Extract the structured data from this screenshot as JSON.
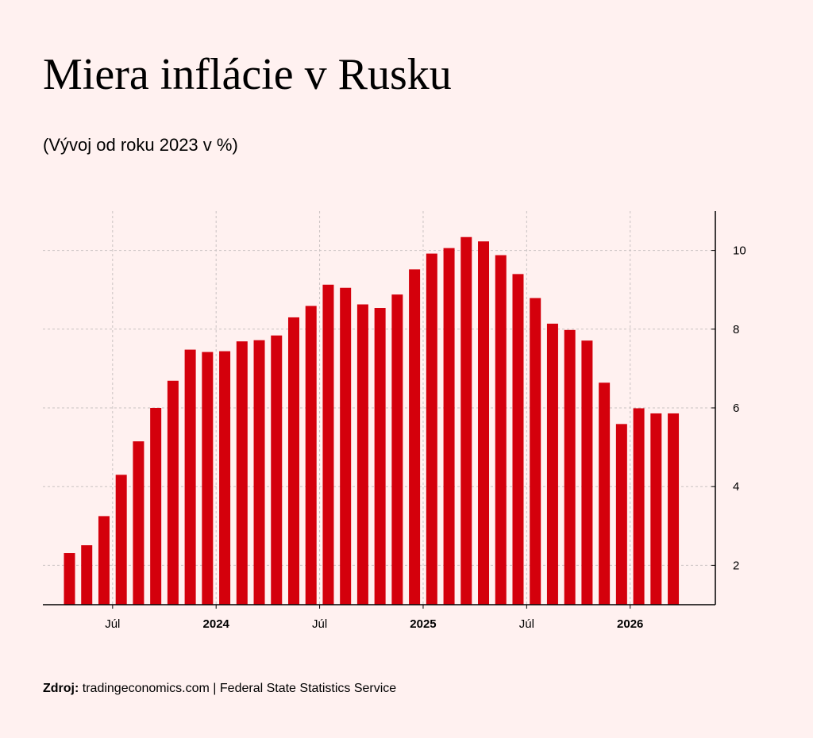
{
  "header": {
    "title": "Miera inflácie v Rusku",
    "subtitle": "(Vývoj od roku 2023 v %)"
  },
  "footer": {
    "source_label": "Zdroj:",
    "source_text": " tradingeconomics.com | Federal State Statistics Service"
  },
  "colors": {
    "bar": "#d4000c",
    "background": "#fff1f0",
    "grid": "#c9c2c2",
    "axis": "#000000"
  },
  "chart_data": {
    "type": "bar",
    "x": [
      "2023-04",
      "2023-05",
      "2023-06",
      "2023-07",
      "2023-08",
      "2023-09",
      "2023-10",
      "2023-11",
      "2023-12",
      "2024-01",
      "2024-02",
      "2024-03",
      "2024-04",
      "2024-05",
      "2024-06",
      "2024-07",
      "2024-08",
      "2024-09",
      "2024-10",
      "2024-11",
      "2024-12",
      "2025-01",
      "2025-02",
      "2025-03",
      "2025-04",
      "2025-05",
      "2025-06",
      "2025-07",
      "2025-08",
      "2025-09",
      "2025-10",
      "2025-11",
      "2025-12",
      "2026-01",
      "2026-02",
      "2026-03"
    ],
    "values": [
      2.31,
      2.51,
      3.25,
      4.3,
      5.15,
      6.0,
      6.69,
      7.48,
      7.42,
      7.44,
      7.69,
      7.72,
      7.84,
      8.3,
      8.59,
      9.13,
      9.05,
      8.63,
      8.54,
      8.88,
      9.52,
      9.92,
      10.06,
      10.34,
      10.23,
      9.88,
      9.4,
      8.79,
      8.14,
      7.98,
      7.71,
      6.64,
      5.59,
      5.99,
      5.86,
      5.86
    ],
    "categories_unit": "month",
    "x_tick_labels": [
      {
        "label": "Júl",
        "at": "2023-07",
        "bold": false
      },
      {
        "label": "2024",
        "at": "2024-01",
        "bold": true
      },
      {
        "label": "Júl",
        "at": "2024-07",
        "bold": false
      },
      {
        "label": "2025",
        "at": "2025-01",
        "bold": true
      },
      {
        "label": "Júl",
        "at": "2025-07",
        "bold": false
      },
      {
        "label": "2026",
        "at": "2026-01",
        "bold": true
      }
    ],
    "y_ticks": [
      "2",
      "4",
      "6",
      "8",
      "10"
    ],
    "ylim": [
      1,
      11
    ],
    "y_axis_side": "right",
    "grid": true,
    "title": "Miera inflácie v Rusku",
    "subtitle": "(Vývoj od roku 2023 v %)",
    "xlabel": "",
    "ylabel": ""
  }
}
